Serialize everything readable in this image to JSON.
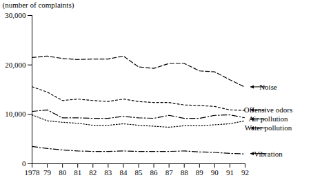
{
  "chart_data": {
    "type": "line",
    "y_label": "(number of complaints)",
    "x": [
      1978,
      1979,
      1980,
      1981,
      1982,
      1983,
      1984,
      1985,
      1986,
      1987,
      1988,
      1989,
      1990,
      1991,
      1992
    ],
    "xlim": [
      1978,
      1992
    ],
    "xticks": [
      1978,
      {
        "value": 1979,
        "label": "79"
      },
      {
        "value": 1980,
        "label": "80"
      },
      {
        "value": 1981,
        "label": "81"
      },
      {
        "value": 1982,
        "label": "82"
      },
      {
        "value": 1983,
        "label": "83"
      },
      {
        "value": 1984,
        "label": "84"
      },
      {
        "value": 1985,
        "label": "85"
      },
      {
        "value": 1986,
        "label": "86"
      },
      {
        "value": 1987,
        "label": "87"
      },
      {
        "value": 1988,
        "label": "88"
      },
      {
        "value": 1989,
        "label": "89"
      },
      {
        "value": 1990,
        "label": "90"
      },
      {
        "value": 1991,
        "label": "91"
      },
      {
        "value": 1992,
        "label": "92"
      }
    ],
    "ylim": [
      0,
      30000
    ],
    "yticks": [
      0,
      {
        "value": 10000,
        "label": "10,000"
      },
      {
        "value": 20000,
        "label": "20,000"
      },
      {
        "value": 30000,
        "label": "30,000"
      }
    ],
    "grid": false,
    "series": [
      {
        "name": "Noise",
        "color": "#000000",
        "line_style": "dashed",
        "values": [
          21500,
          21800,
          21300,
          21100,
          21200,
          21200,
          21800,
          19600,
          19300,
          20300,
          20300,
          18800,
          18600,
          17000,
          15500
        ]
      },
      {
        "name": "Offensive odors",
        "color": "#000000",
        "line_style": "dashed",
        "values": [
          15600,
          14500,
          12800,
          13100,
          12800,
          12600,
          13100,
          12600,
          12400,
          12400,
          11900,
          11800,
          11600,
          10900,
          10800
        ]
      },
      {
        "name": "Air pollution",
        "color": "#000000",
        "line_style": "dashdot",
        "values": [
          10600,
          10900,
          9300,
          9300,
          9200,
          9200,
          9600,
          9300,
          9200,
          9800,
          9200,
          9200,
          9800,
          9900,
          9300
        ]
      },
      {
        "name": "Water pollution",
        "color": "#000000",
        "line_style": "dotted",
        "values": [
          9900,
          8700,
          8400,
          8200,
          7800,
          7800,
          8100,
          7800,
          7600,
          7400,
          7700,
          7700,
          7900,
          8100,
          8700
        ]
      },
      {
        "name": "Vibration",
        "color": "#000000",
        "line_style": "dashdot",
        "values": [
          3500,
          3100,
          2800,
          2600,
          2500,
          2500,
          2600,
          2500,
          2500,
          2500,
          2600,
          2400,
          2300,
          2100,
          2000
        ]
      }
    ]
  }
}
